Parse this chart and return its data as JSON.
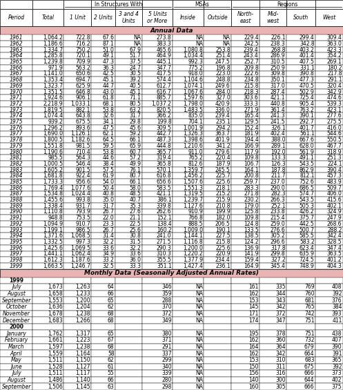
{
  "col_headers": [
    "Period",
    "Total",
    "1 Unit",
    "2 Units",
    "3 and 4\nUnits",
    "5 Units\nor More",
    "Inside",
    "Outside",
    "North-\neast",
    "Mid-\nwest",
    "South",
    "West"
  ],
  "annual_header": "Annual Data",
  "monthly_header": "Monthly Data (Seasonally Adjusted Annual Rates)",
  "annual_rows": [
    [
      "1961",
      "1,064.2",
      "722.8",
      "67.6",
      "NA",
      "273.8",
      "NA",
      "NA",
      "229.4",
      "226.1",
      "299.4",
      "309.4"
    ],
    [
      "1962",
      "1,186.6",
      "716.2",
      "87.1",
      "NA",
      "383.3",
      "NA",
      "NA",
      "242.5",
      "238.3",
      "342.8",
      "363.0"
    ],
    [
      "1963",
      "1,334.7",
      "750.2",
      "51.0",
      "67.9",
      "465.6",
      "1,080.8",
      "253.8",
      "239.4",
      "268.8",
      "403.2",
      "423.3"
    ],
    [
      "1964",
      "1,285.8",
      "720.1",
      "49.1",
      "51.7",
      "464.9",
      "1,034.4",
      "251.4",
      "243.4",
      "286.9",
      "401.4",
      "354.2"
    ],
    [
      "1965",
      "1,239.8",
      "709.9",
      "47.3",
      "37.5",
      "445.1",
      "992.3",
      "247.5",
      "252.7",
      "310.5",
      "407.5",
      "269.1"
    ],
    [
      "1966",
      "971.9",
      "563.2",
      "36.3",
      "24.7",
      "347.7",
      "775.2",
      "196.8",
      "209.8",
      "250.9",
      "331.1",
      "180.2"
    ],
    [
      "1967",
      "1,141.0",
      "650.6",
      "42.5",
      "30.5",
      "417.5",
      "918.0",
      "223.0",
      "222.6",
      "309.8",
      "390.8",
      "217.8"
    ],
    [
      "1968",
      "1,353.4",
      "694.7",
      "45.1",
      "39.2",
      "574.4",
      "1,104.6",
      "248.8",
      "234.8",
      "350.1",
      "477.3",
      "291.1"
    ],
    [
      "1969",
      "1,323.7",
      "625.9",
      "44.7",
      "40.5",
      "612.7",
      "1,074.1",
      "249.6",
      "215.8",
      "317.0",
      "470.5",
      "320.4"
    ],
    [
      "1970",
      "1,351.5",
      "646.8",
      "43.0",
      "45.1",
      "616.7",
      "1,067.6",
      "284.0",
      "218.3",
      "287.4",
      "502.9",
      "342.9"
    ],
    [
      "1971",
      "1,924.6",
      "906.1",
      "61.8",
      "71.1",
      "885.7",
      "1,597.6",
      "327.0",
      "303.6",
      "421.1",
      "725.4",
      "474.6"
    ],
    [
      "1972",
      "2,218.9",
      "1,033.1",
      "68.1",
      "80.5",
      "1,037.2",
      "1,798.0",
      "420.9",
      "333.3",
      "440.8",
      "905.4",
      "539.3"
    ],
    [
      "1973",
      "1,819.5",
      "882.1",
      "53.8",
      "63.2",
      "820.5",
      "1,483.5",
      "336.0",
      "271.9",
      "361.4",
      "763.2",
      "423.1"
    ],
    [
      "1974",
      "1,074.4",
      "643.8",
      "32.6",
      "31.7",
      "366.2",
      "835.0",
      "239.4",
      "165.4",
      "241.3",
      "390.1",
      "277.6"
    ],
    [
      "1975",
      "939.2",
      "675.5",
      "34.1",
      "29.8",
      "199.8",
      "704.1",
      "235.1",
      "129.5",
      "241.5",
      "292.7",
      "275.5"
    ],
    [
      "1976",
      "1,296.2",
      "893.6",
      "47.5",
      "45.6",
      "309.5",
      "1,001.9",
      "294.2",
      "152.4",
      "326.1",
      "401.7",
      "416.0"
    ],
    [
      "1977",
      "1,690.0",
      "1,126.1",
      "62.1",
      "59.2",
      "442.7",
      "1,326.3",
      "363.7",
      "181.9",
      "402.4",
      "561.1",
      "544.6"
    ],
    [
      "1978",
      "1,800.5",
      "1,182.6",
      "64.5",
      "66.1",
      "487.3",
      "1,398.6",
      "401.9",
      "194.4",
      "388.0",
      "667.6",
      "550.5"
    ],
    [
      "1979",
      "1,551.8",
      "981.5",
      "59.5",
      "65.9",
      "444.8",
      "1,210.6",
      "341.2",
      "166.9",
      "289.1",
      "628.0",
      "467.7"
    ],
    [
      "1980",
      "1,190.6",
      "710.4",
      "53.8",
      "60.7",
      "365.7",
      "911.0",
      "279.6",
      "117.9",
      "192.0",
      "561.9",
      "318.9"
    ],
    [
      "1981",
      "985.5",
      "564.3",
      "44.6",
      "57.2",
      "319.4",
      "765.2",
      "220.4",
      "109.8",
      "133.3",
      "491.1",
      "251.3"
    ],
    [
      "1982",
      "1,000.5",
      "546.4",
      "38.4",
      "49.9",
      "365.8",
      "812.6",
      "187.9",
      "106.7",
      "126.3",
      "543.5",
      "224.1"
    ],
    [
      "1983",
      "1,605.2",
      "901.5",
      "57.5",
      "76.1",
      "570.1",
      "1,359.7",
      "245.5",
      "164.1",
      "187.8",
      "862.9",
      "390.4"
    ],
    [
      "1984",
      "1,681.8",
      "922.4",
      "61.9",
      "80.7",
      "616.8",
      "1,456.2",
      "225.7",
      "200.8",
      "211.7",
      "812.1",
      "457.3"
    ],
    [
      "1985",
      "1,733.3",
      "956.6",
      "54.0",
      "66.1",
      "656.6",
      "1,507.6",
      "225.6",
      "259.7",
      "237.0",
      "752.6",
      "483.9"
    ],
    [
      "1986",
      "1,769.4",
      "1,077.6",
      "50.4",
      "58.0",
      "583.5",
      "1,551.3",
      "218.1",
      "283.3",
      "290.0",
      "686.5",
      "509.7"
    ],
    [
      "1987",
      "1,534.8",
      "1,024.4",
      "40.8",
      "48.5",
      "421.1",
      "1,319.5",
      "215.2",
      "271.8",
      "282.3",
      "574.7",
      "406.0"
    ],
    [
      "1988",
      "1,455.6",
      "993.8",
      "35.0",
      "40.7",
      "386.1",
      "1,239.7",
      "215.9",
      "230.2",
      "266.3",
      "543.5",
      "415.6"
    ],
    [
      "1989",
      "1,338.4",
      "931.7",
      "31.7",
      "35.3",
      "339.8",
      "1,127.6",
      "210.8",
      "179.0",
      "252.1",
      "505.3",
      "402.1"
    ],
    [
      "1990",
      "1,110.8",
      "793.9",
      "26.7",
      "27.6",
      "262.6",
      "910.9",
      "199.9",
      "125.8",
      "233.8",
      "426.2",
      "324.9"
    ],
    [
      "1991",
      "948.8",
      "753.5",
      "22.0",
      "21.1",
      "152.1",
      "766.8",
      "182.0",
      "109.8",
      "215.4",
      "375.7",
      "247.9"
    ],
    [
      "1992",
      "1,094.9",
      "910.7",
      "23.3",
      "22.5",
      "138.4",
      "888.5",
      "206.5",
      "124.8",
      "259.0",
      "442.5",
      "268.6"
    ],
    [
      "1993",
      "1,199.1",
      "986.5",
      "26.7",
      "25.6",
      "160.2",
      "1,009.0",
      "190.1",
      "133.5",
      "276.6",
      "500.7",
      "288.2"
    ],
    [
      "1994",
      "1,371.6",
      "1,068.5",
      "31.4",
      "30.8",
      "241.0",
      "1,144.1",
      "227.5",
      "138.5",
      "305.2",
      "585.5",
      "342.4"
    ],
    [
      "1995",
      "1,332.5",
      "997.3",
      "32.2",
      "31.5",
      "271.5",
      "1,116.8",
      "215.8",
      "124.2",
      "296.6",
      "583.2",
      "328.5"
    ],
    [
      "1996",
      "1,425.6",
      "1,069.5",
      "33.6",
      "32.2",
      "290.3",
      "1,200.0",
      "225.6",
      "136.9",
      "317.8",
      "623.4",
      "347.4"
    ],
    [
      "1997",
      "1,441.1",
      "1,062.4",
      "34.9",
      "33.6",
      "310.3",
      "1,220.2",
      "220.9",
      "141.9",
      "299.8",
      "635.9",
      "363.5"
    ],
    [
      "1998",
      "1,612.3",
      "1,187.6",
      "33.2",
      "36.0",
      "355.5",
      "1,377.9",
      "234.4",
      "159.4",
      "327.2",
      "724.5",
      "401.2"
    ],
    [
      "1999",
      "1,663.5",
      "1,246.7",
      "32.5",
      "33.3",
      "351.1",
      "1,427.4",
      "236.1",
      "164.9",
      "345.4",
      "748.9",
      "404.3"
    ]
  ],
  "monthly_year_rows": [
    [
      "1999",
      "",
      "",
      "",
      "",
      "",
      "",
      "",
      "",
      "",
      "",
      ""
    ],
    [
      "July",
      "1,673",
      "1,263",
      "64",
      "",
      "346",
      "NA",
      "",
      "161",
      "335",
      "769",
      "408"
    ],
    [
      "August",
      "1,658",
      "1,233",
      "66",
      "",
      "359",
      "NA",
      "",
      "162",
      "344",
      "760",
      "392"
    ],
    [
      "September",
      "1,553",
      "1,200",
      "65",
      "",
      "288",
      "NA",
      "",
      "153",
      "343",
      "681",
      "376"
    ],
    [
      "October",
      "1,636",
      "1,204",
      "62",
      "",
      "370",
      "NA",
      "",
      "145",
      "342",
      "765",
      "384"
    ],
    [
      "November",
      "1,678",
      "1,238",
      "68",
      "",
      "372",
      "NA",
      "",
      "171",
      "372",
      "742",
      "393"
    ],
    [
      "December",
      "1,683",
      "1,266",
      "68",
      "",
      "349",
      "NA",
      "",
      "174",
      "347",
      "751",
      "411"
    ],
    [
      "2000",
      "",
      "",
      "",
      "",
      "",
      "",
      "",
      "",
      "",
      "",
      ""
    ],
    [
      "January",
      "1,762",
      "1,317",
      "65",
      "",
      "380",
      "NA",
      "",
      "195",
      "378",
      "751",
      "438"
    ],
    [
      "February",
      "1,661",
      "1,223",
      "67",
      "",
      "371",
      "NA",
      "",
      "162",
      "360",
      "732",
      "407"
    ],
    [
      "March",
      "1,597",
      "1,238",
      "68",
      "",
      "291",
      "NA",
      "",
      "164",
      "364",
      "679",
      "390"
    ],
    [
      "April",
      "1,559",
      "1,164",
      "58",
      "",
      "337",
      "NA",
      "",
      "162",
      "342",
      "664",
      "391"
    ],
    [
      "May",
      "1,511",
      "1,150",
      "62",
      "",
      "299",
      "NA",
      "",
      "153",
      "310",
      "683",
      "365"
    ],
    [
      "June",
      "1,528",
      "1,127",
      "61",
      "",
      "340",
      "NA",
      "",
      "150",
      "311",
      "675",
      "392"
    ],
    [
      "July",
      "1,511",
      "1,117",
      "55",
      "",
      "339",
      "NA",
      "",
      "156",
      "316",
      "666",
      "373"
    ],
    [
      "August",
      "1,486",
      "1,140",
      "66",
      "",
      "280",
      "NA",
      "",
      "140",
      "300",
      "644",
      "402"
    ],
    [
      "September",
      "1,506",
      "1,145",
      "63",
      "",
      "298",
      "NA",
      "",
      "160",
      "305",
      "666",
      "375"
    ]
  ],
  "bg_color": "#e8b4b4",
  "font_size": 5.5
}
